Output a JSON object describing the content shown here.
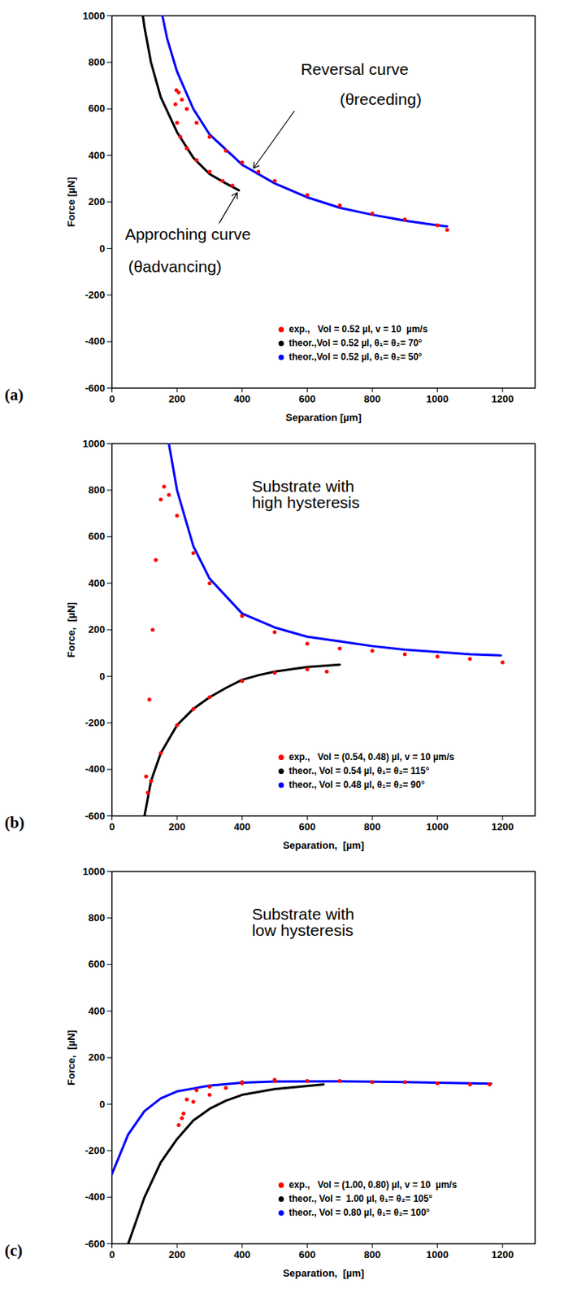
{
  "chart_data": [
    {
      "type": "line",
      "panel_label": "(a)",
      "xlabel": "Separation [µm]",
      "ylabel": "Force [µN]",
      "xlim": [
        0,
        1300
      ],
      "xticks": [
        0,
        200,
        400,
        600,
        800,
        1000,
        1200
      ],
      "ylim": [
        -600,
        1000
      ],
      "yticks": [
        -600,
        -400,
        -200,
        0,
        200,
        400,
        600,
        800,
        1000
      ],
      "legend": "lower right",
      "annotations": [
        {
          "text": "Reversal curve"
        },
        {
          "text": "(θreceding)"
        },
        {
          "text": "Approching curve"
        },
        {
          "text": "(θadvancing)"
        }
      ],
      "series": [
        {
          "name": "exp.,   Vol = 0.52 µl, v = 10  µm/s",
          "color": "#ff0000",
          "type": "scatter",
          "marker": "circle",
          "x": [
            370,
            340,
            300,
            260,
            230,
            210,
            200,
            195,
            198,
            205,
            215,
            230,
            260,
            300,
            350,
            400,
            450,
            500,
            600,
            700,
            800,
            900,
            1000,
            1030
          ],
          "values": [
            270,
            290,
            330,
            380,
            430,
            480,
            540,
            620,
            680,
            670,
            640,
            600,
            540,
            480,
            420,
            370,
            330,
            290,
            230,
            185,
            150,
            125,
            100,
            80
          ]
        },
        {
          "name": "theor.,Vol = 0.52 µl, θ₁= θ₂= 70°",
          "color": "#000000",
          "type": "line",
          "marker": "circle",
          "x": [
            95,
            100,
            120,
            150,
            200,
            250,
            300,
            350,
            390
          ],
          "values": [
            1000,
            950,
            800,
            650,
            500,
            390,
            320,
            280,
            250
          ]
        },
        {
          "name": "theor.,Vol = 0.52 µl, θ₁= θ₂= 50°",
          "color": "#0000ff",
          "type": "line",
          "marker": "circle",
          "x": [
            155,
            170,
            200,
            250,
            300,
            400,
            500,
            600,
            700,
            800,
            900,
            1000,
            1030
          ],
          "values": [
            1000,
            900,
            760,
            600,
            490,
            360,
            280,
            220,
            175,
            145,
            120,
            100,
            95
          ]
        }
      ]
    },
    {
      "type": "line",
      "panel_label": "(b)",
      "xlabel": "Separation,  [µm]",
      "ylabel": "Force,  [µN]",
      "xlim": [
        0,
        1300
      ],
      "xticks": [
        0,
        200,
        400,
        600,
        800,
        1000,
        1200
      ],
      "ylim": [
        -600,
        1000
      ],
      "yticks": [
        -600,
        -400,
        -200,
        0,
        200,
        400,
        600,
        800,
        1000
      ],
      "legend": "lower right",
      "annotations": [
        {
          "text": "Substrate with\nhigh hysteresis"
        }
      ],
      "series": [
        {
          "name": "exp.,   Vol = (0.54, 0.48) µl, v = 10 µm/s",
          "color": "#ff0000",
          "type": "scatter",
          "marker": "circle",
          "x": [
            660,
            600,
            500,
            400,
            300,
            250,
            200,
            150,
            120,
            110,
            105,
            115,
            125,
            135,
            150,
            160,
            175,
            200,
            250,
            300,
            400,
            500,
            600,
            700,
            800,
            900,
            1000,
            1100,
            1200
          ],
          "values": [
            20,
            30,
            15,
            -20,
            -90,
            -140,
            -210,
            -330,
            -450,
            -500,
            -430,
            -100,
            200,
            500,
            760,
            815,
            780,
            690,
            530,
            400,
            260,
            190,
            140,
            120,
            110,
            95,
            85,
            75,
            60
          ]
        },
        {
          "name": "theor., Vol = 0.54 µl, θ₁= θ₂= 115°",
          "color": "#000000",
          "type": "line",
          "marker": "circle",
          "x": [
            100,
            120,
            150,
            200,
            250,
            300,
            350,
            400,
            450,
            500,
            600,
            700
          ],
          "values": [
            -600,
            -450,
            -330,
            -210,
            -140,
            -90,
            -50,
            -15,
            5,
            20,
            40,
            50
          ]
        },
        {
          "name": "theor., Vol = 0.48 µl, θ₁= θ₂= 90°",
          "color": "#0000ff",
          "type": "line",
          "marker": "circle",
          "x": [
            175,
            200,
            250,
            300,
            400,
            500,
            600,
            700,
            800,
            900,
            1000,
            1100,
            1195
          ],
          "values": [
            1000,
            800,
            560,
            420,
            270,
            210,
            170,
            150,
            130,
            115,
            105,
            95,
            90
          ]
        }
      ]
    },
    {
      "type": "line",
      "panel_label": "(c)",
      "xlabel": "Separation,  [µm]",
      "ylabel": "Force,  [µN]",
      "xlim": [
        0,
        1300
      ],
      "xticks": [
        0,
        200,
        400,
        600,
        800,
        1000,
        1200
      ],
      "ylim": [
        -600,
        1000
      ],
      "yticks": [
        -600,
        -400,
        -200,
        0,
        200,
        400,
        600,
        800,
        1000
      ],
      "legend": "lower right",
      "annotations": [
        {
          "text": "Substrate with\nlow hysteresis"
        }
      ],
      "series": [
        {
          "name": "exp.,   Vol = (1.00, 0.80) µl, v = 10  µm/s",
          "color": "#ff0000",
          "type": "scatter",
          "marker": "circle",
          "x": [
            1160,
            1000,
            800,
            600,
            500,
            400,
            350,
            300,
            250,
            220,
            205,
            215,
            230,
            260,
            300,
            400,
            500,
            700,
            900,
            1100
          ],
          "values": [
            85,
            90,
            95,
            100,
            105,
            95,
            70,
            40,
            10,
            -40,
            -90,
            -60,
            20,
            60,
            75,
            90,
            100,
            100,
            95,
            85
          ]
        },
        {
          "name": "theor., Vol =  1.00 µl, θ₁= θ₂= 105°",
          "color": "#000000",
          "type": "line",
          "marker": "circle",
          "x": [
            50,
            100,
            150,
            200,
            250,
            300,
            350,
            400,
            500,
            650
          ],
          "values": [
            -600,
            -400,
            -250,
            -150,
            -70,
            -20,
            15,
            40,
            65,
            85
          ]
        },
        {
          "name": "theor., Vol = 0.80 µl, θ₁= θ₂= 100°",
          "color": "#0000ff",
          "type": "line",
          "marker": "circle",
          "x": [
            0,
            50,
            100,
            150,
            200,
            300,
            400,
            500,
            700,
            900,
            1165
          ],
          "values": [
            -300,
            -130,
            -30,
            25,
            55,
            80,
            92,
            97,
            98,
            95,
            88
          ]
        }
      ]
    }
  ]
}
